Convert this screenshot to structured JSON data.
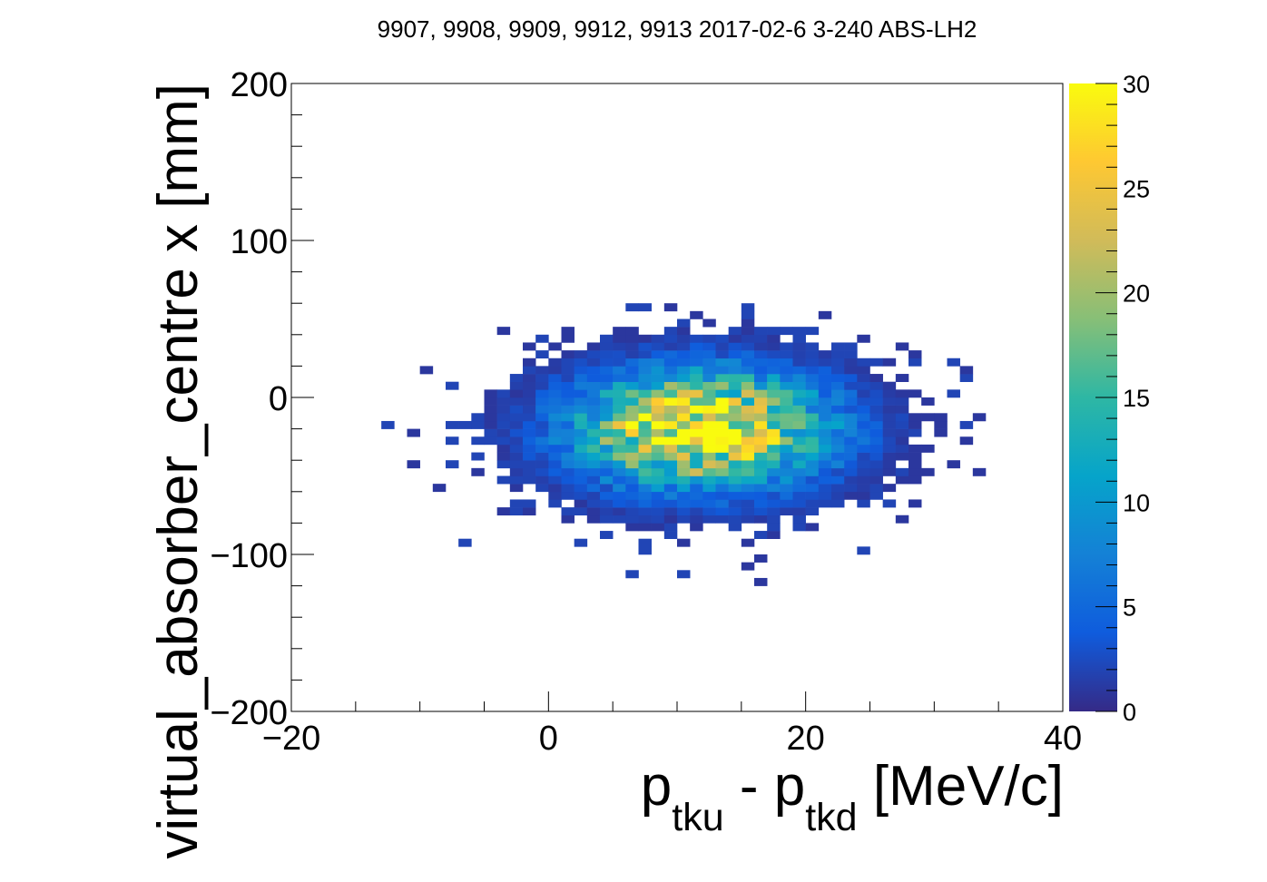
{
  "chart_data": {
    "type": "heatmap",
    "title": "9907, 9908, 9909, 9912, 9913 2017-02-6 3-240 ABS-LH2",
    "xlabel": {
      "main": "p",
      "sub1": "tku",
      "mid": " - p",
      "sub2": "tkd",
      "tail": " [MeV/c]"
    },
    "ylabel": "virtual_absorber_centre x [mm]",
    "xlim": [
      -20,
      40
    ],
    "ylim": [
      -200,
      200
    ],
    "x_ticks": [
      "−20",
      "0",
      "20",
      "40"
    ],
    "y_ticks": [
      "−200",
      "−100",
      "0",
      "100",
      "200"
    ],
    "colorbar": {
      "range": [
        0,
        30
      ],
      "ticks": [
        "0",
        "5",
        "10",
        "15",
        "20",
        "25",
        "30"
      ],
      "palette": [
        "#352a87",
        "#0f5cdd",
        "#1481d6",
        "#06a4ca",
        "#2eb7a4",
        "#87bf77",
        "#d1bb59",
        "#fec832",
        "#f9fb0e"
      ]
    },
    "distribution": {
      "description": "2D histogram of counts per bin",
      "bin_width_x": 1,
      "bin_width_y": 5,
      "center": [
        12,
        -20
      ],
      "sigma": [
        6.5,
        24
      ],
      "peak_count": 30
    },
    "grid": false,
    "legend": "none"
  }
}
